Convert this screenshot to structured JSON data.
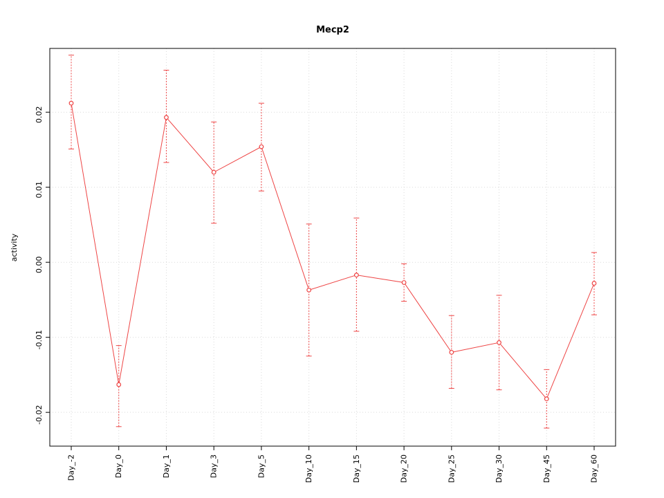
{
  "chart_data": {
    "type": "line",
    "title": "Mecp2",
    "xlabel": "",
    "ylabel": "activity",
    "legend_position": "none",
    "grid": true,
    "categories": [
      "Day_-2",
      "Day_0",
      "Day_1",
      "Day_3",
      "Day_5",
      "Day_10",
      "Day_15",
      "Day_20",
      "Day_25",
      "Day_30",
      "Day_45",
      "Day_60"
    ],
    "series": [
      {
        "name": "activity",
        "values": [
          0.0212,
          -0.0163,
          0.0193,
          0.012,
          0.0154,
          -0.0037,
          -0.0017,
          -0.0027,
          -0.012,
          -0.0107,
          -0.0182,
          -0.0028
        ],
        "err_low": [
          0.0151,
          -0.0219,
          0.0133,
          0.0052,
          0.0095,
          -0.0125,
          -0.0092,
          -0.0052,
          -0.0168,
          -0.017,
          -0.0221,
          -0.007
        ],
        "err_high": [
          0.0276,
          -0.0111,
          0.0256,
          0.0187,
          0.0212,
          0.0051,
          0.0059,
          -0.0002,
          -0.0071,
          -0.0044,
          -0.0143,
          0.0013
        ]
      }
    ],
    "ylim": [
      -0.0245,
      0.0285
    ],
    "y_tick_values": [
      -0.02,
      -0.01,
      0.0,
      0.01,
      0.02
    ],
    "y_tick_labels": [
      "-0.02",
      "-0.01",
      "0.00",
      "0.01",
      "0.02"
    ],
    "colors": {
      "line": "#ee4444",
      "point_fill": "#ffffff",
      "grid": "#d9d9d9",
      "axis": "#000000",
      "background": "#ffffff"
    }
  }
}
